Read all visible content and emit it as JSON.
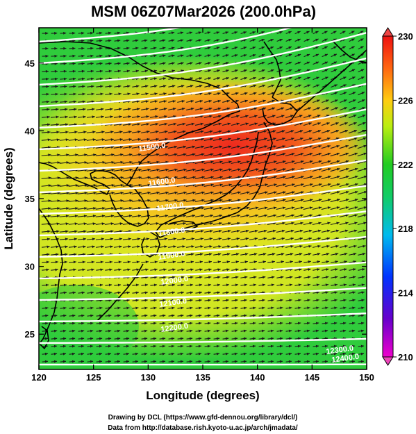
{
  "title": "MSM 06Z07Mar2026 (200.0hPa)",
  "x_axis": {
    "label": "Longitude (degrees)",
    "range": [
      120,
      150
    ],
    "ticks": [
      "120",
      "125",
      "130",
      "135",
      "140",
      "145",
      "150"
    ]
  },
  "y_axis": {
    "label": "Latitude  (degrees)",
    "range": [
      22.4,
      47.6
    ],
    "ticks": [
      "25",
      "30",
      "35",
      "40",
      "45"
    ]
  },
  "colorbar": {
    "range": [
      210,
      230
    ],
    "labels": [
      "230",
      "226",
      "222",
      "218",
      "214",
      "210"
    ]
  },
  "contours": {
    "labels": [
      "11500.0",
      "11600.0",
      "11700.0",
      "11800.0",
      "11900.0",
      "12000.0",
      "12100.0",
      "12200.0",
      "12300.0",
      "12400.0"
    ]
  },
  "credits": {
    "line1": "Drawing by DCL (https://www.gfd-dennou.org/library/dcl/)",
    "line2": "Data from http://database.rish.kyoto-u.ac.jp/arch/jmadata/"
  },
  "colors": {
    "field_low": "#22cc44",
    "field_mid": "#ccee22",
    "field_high": "#ee3322",
    "contour": "#ffffff",
    "vector": "#1a1a1a",
    "coast": "#000000"
  }
}
